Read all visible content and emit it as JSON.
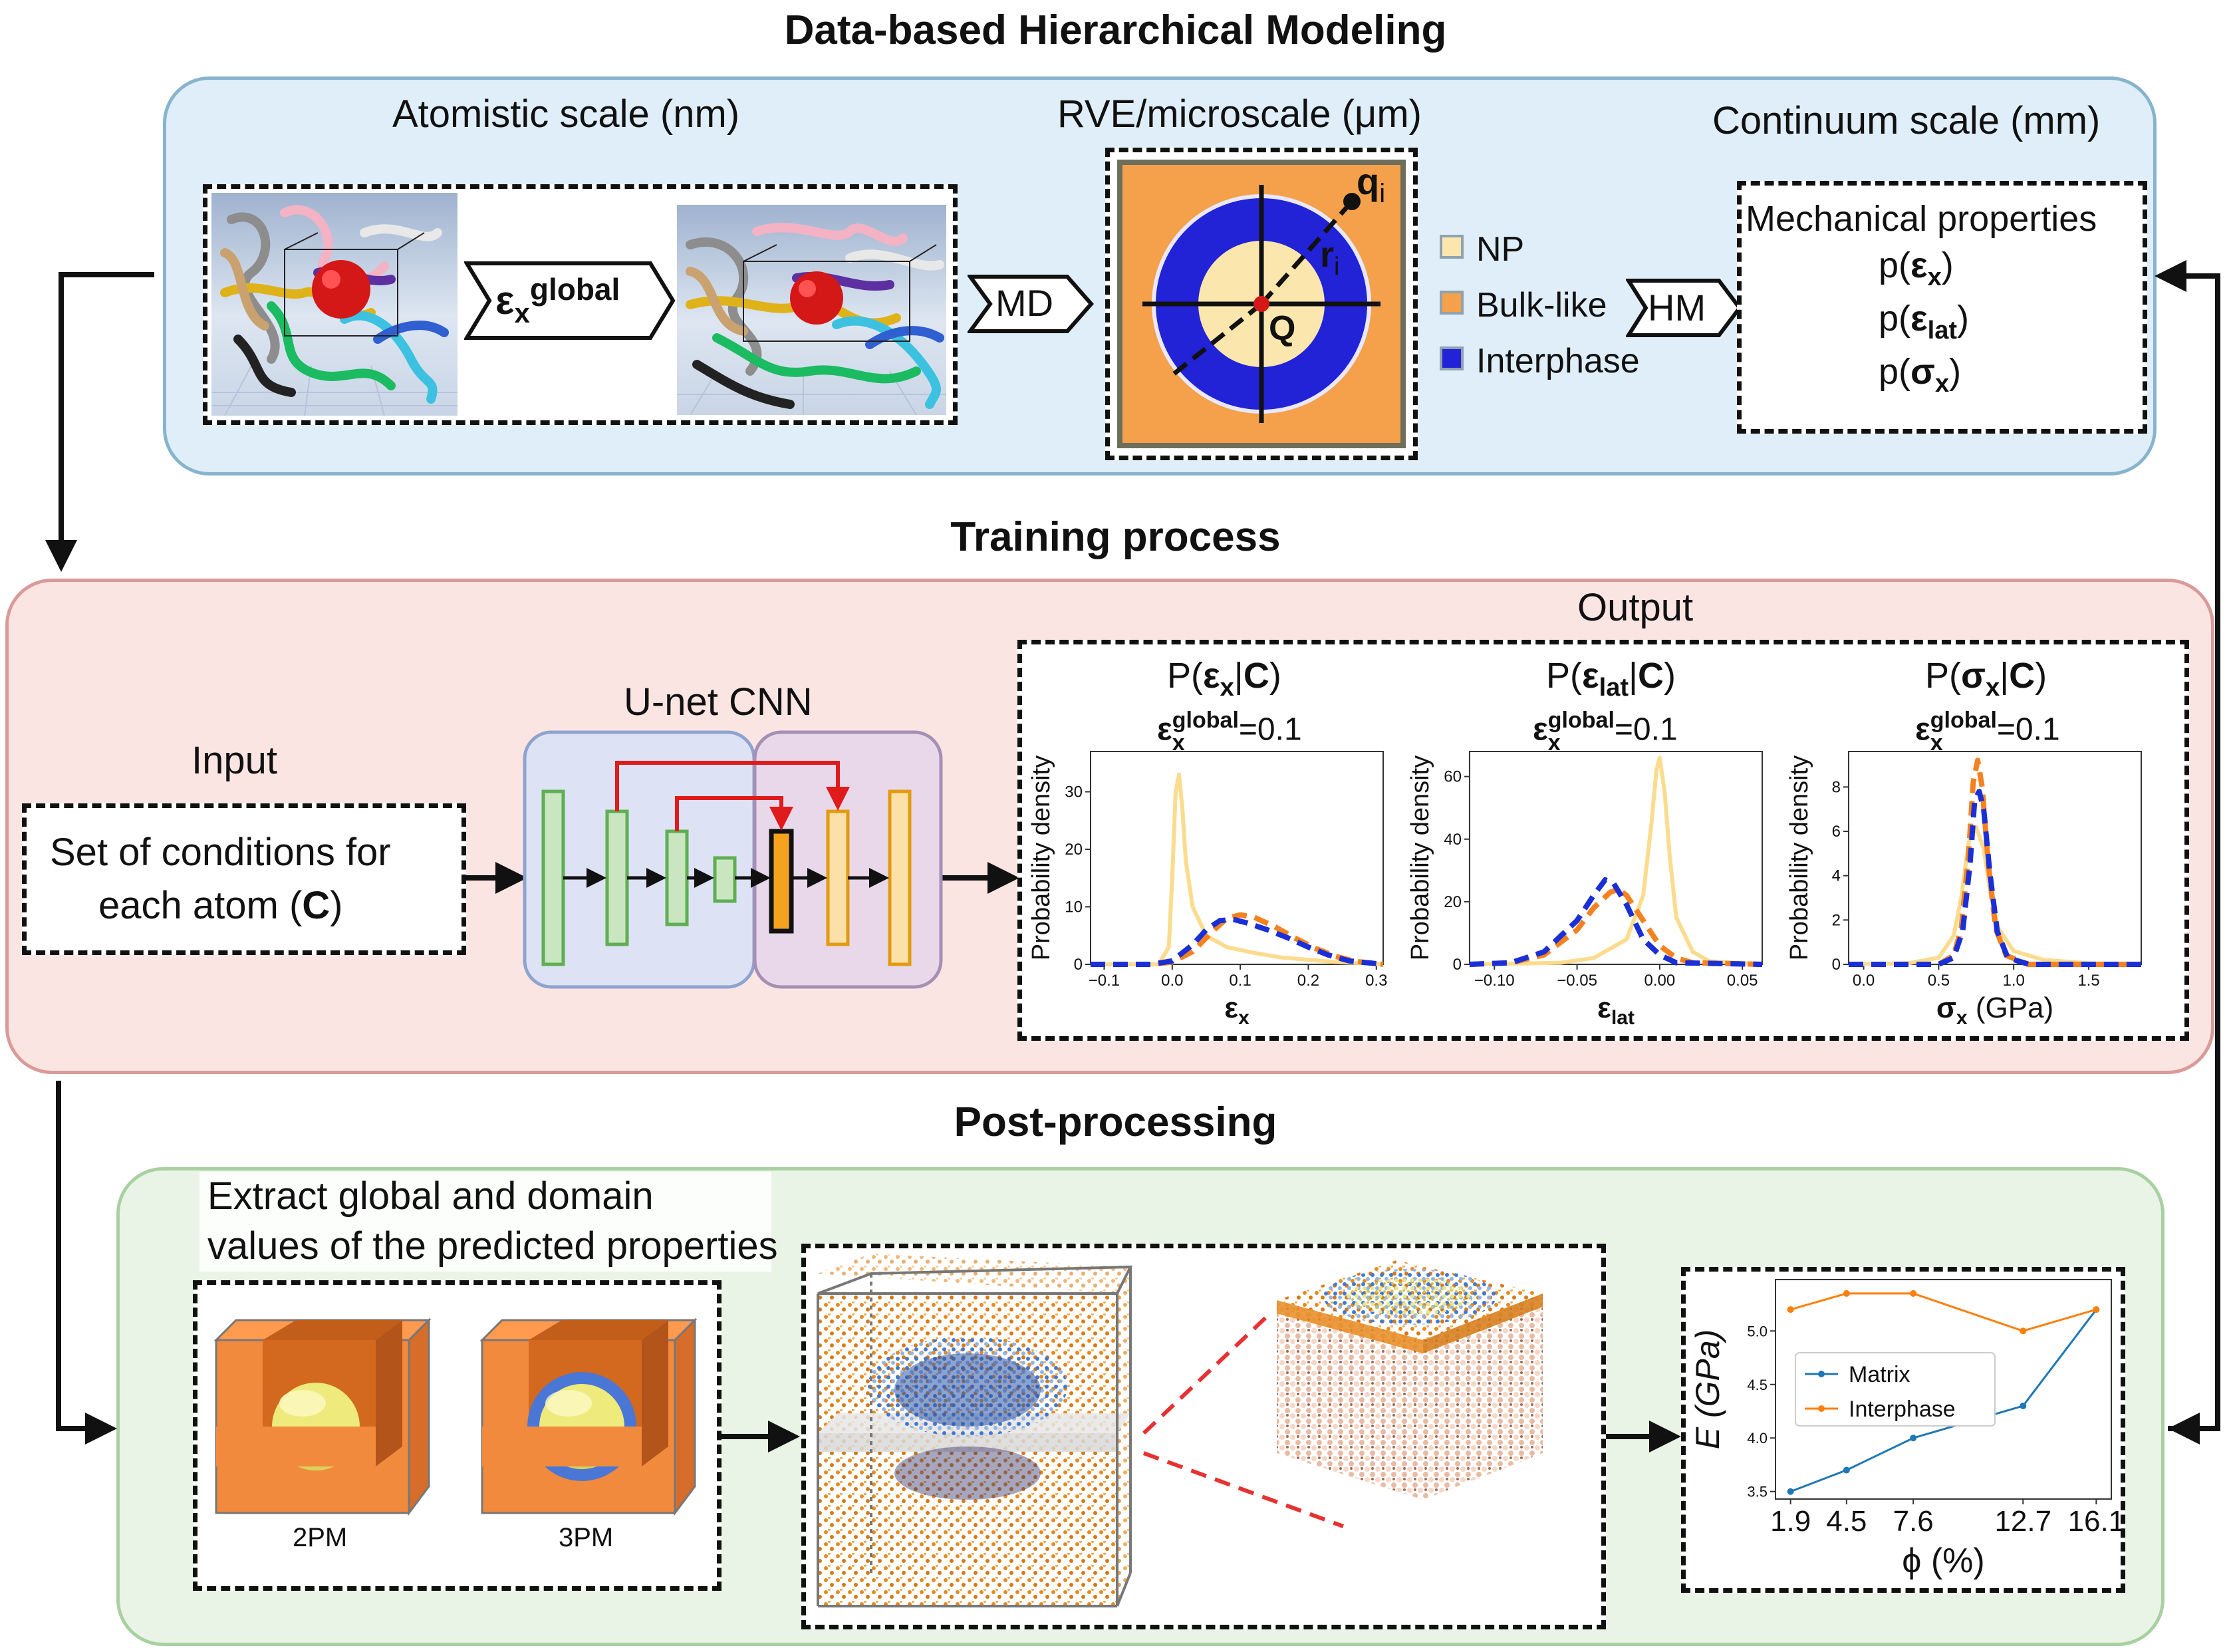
{
  "titles": {
    "main": "Data-based Hierarchical Modeling",
    "training": "Training process",
    "post": "Post-processing"
  },
  "top": {
    "atomistic_label": "Atomistic scale (nm)",
    "rve_label": "RVE/microscale (μm)",
    "continuum_label": "Continuum scale (mm)",
    "strain_arrow": {
      "sym": "ε",
      "sub": "x",
      "sup": "global"
    },
    "md_arrow": "MD",
    "hm_arrow": "HM",
    "rve_labels": {
      "q": "q",
      "q_sub": "i",
      "r": "r",
      "r_sub": "i",
      "center": "Q"
    },
    "legend": [
      {
        "label": "NP",
        "color": "#fbe6ad"
      },
      {
        "label": "Bulk-like",
        "color": "#f5a04a"
      },
      {
        "label": "Interphase",
        "color": "#2222d6"
      }
    ],
    "mech": {
      "title": "Mechanical properties",
      "p": "p(",
      "close": ")",
      "items": [
        {
          "sym": "ε",
          "sub": "x"
        },
        {
          "sym": "ε",
          "sub": "lat"
        },
        {
          "sym": "σ",
          "sub": "x"
        }
      ]
    }
  },
  "training": {
    "input_label": "Input",
    "input_text_1": "Set of conditions for",
    "input_text_2a": "each atom (",
    "input_text_2b": "C",
    "input_text_2c": ")",
    "unet_label": "U-net CNN",
    "output_label": "Output"
  },
  "chart_data": [
    {
      "type": "line",
      "title": {
        "prefix": "P(",
        "sym": "ε",
        "sub": "x",
        "cond": "C",
        "suffix": ")"
      },
      "subtitle": {
        "sym": "ε",
        "sub": "x",
        "sup": "global",
        "value": "=0.1"
      },
      "ylabel": "Probability density",
      "xlabel": {
        "sym": "ε",
        "sub": "x",
        "unit": ""
      },
      "xlim": [
        -0.12,
        0.31
      ],
      "ylim": [
        0,
        37
      ],
      "xticks": [
        -0.1,
        0.0,
        0.1,
        0.2,
        0.3
      ],
      "xtick_labels": [
        "−0.1",
        "0.0",
        "0.1",
        "0.2",
        "0.3"
      ],
      "yticks": [
        0,
        10,
        20,
        30
      ],
      "series": [
        {
          "color": "#fbdc8f",
          "dash": "",
          "x": [
            -0.12,
            -0.02,
            -0.005,
            0.0,
            0.005,
            0.01,
            0.015,
            0.02,
            0.03,
            0.05,
            0.08,
            0.12,
            0.16,
            0.2,
            0.24,
            0.28,
            0.31
          ],
          "y": [
            0,
            0,
            3,
            15,
            30,
            33,
            27,
            18,
            10,
            5,
            3,
            2,
            1.2,
            0.8,
            0.4,
            0.2,
            0
          ]
        },
        {
          "color": "#f58220",
          "dash": "22,12",
          "x": [
            -0.12,
            -0.03,
            0.0,
            0.03,
            0.06,
            0.08,
            0.1,
            0.12,
            0.15,
            0.18,
            0.21,
            0.24,
            0.27,
            0.31
          ],
          "y": [
            0,
            0,
            0.4,
            2.2,
            5.8,
            8,
            8.6,
            8.2,
            6.6,
            4.6,
            2.8,
            1.4,
            0.5,
            0
          ]
        },
        {
          "color": "#1a2fd6",
          "dash": "22,12",
          "x": [
            -0.12,
            -0.03,
            0.0,
            0.03,
            0.05,
            0.07,
            0.09,
            0.11,
            0.14,
            0.17,
            0.2,
            0.23,
            0.26,
            0.31
          ],
          "y": [
            0,
            0,
            0.6,
            3.4,
            6,
            7.6,
            7.8,
            7.2,
            6,
            4.6,
            3,
            1.6,
            0.6,
            0
          ]
        }
      ]
    },
    {
      "type": "line",
      "title": {
        "prefix": "P(",
        "sym": "ε",
        "sub": "lat",
        "cond": "C",
        "suffix": ")"
      },
      "subtitle": {
        "sym": "ε",
        "sub": "x",
        "sup": "global",
        "value": "=0.1"
      },
      "ylabel": "Probability density",
      "xlabel": {
        "sym": "ε",
        "sub": "lat",
        "unit": ""
      },
      "xlim": [
        -0.115,
        0.062
      ],
      "ylim": [
        0,
        68
      ],
      "xticks": [
        -0.1,
        -0.05,
        0.0,
        0.05
      ],
      "xtick_labels": [
        "−0.10",
        "−0.05",
        "0.00",
        "0.05"
      ],
      "yticks": [
        0,
        20,
        40,
        60
      ],
      "series": [
        {
          "color": "#fbdc8f",
          "dash": "",
          "x": [
            -0.115,
            -0.06,
            -0.04,
            -0.02,
            -0.01,
            -0.005,
            -0.002,
            0.0,
            0.003,
            0.006,
            0.01,
            0.02,
            0.03,
            0.062
          ],
          "y": [
            0,
            0.5,
            2,
            8,
            22,
            45,
            62,
            66,
            55,
            35,
            15,
            4,
            1,
            0
          ]
        },
        {
          "color": "#f58220",
          "dash": "22,12",
          "x": [
            -0.115,
            -0.09,
            -0.07,
            -0.05,
            -0.04,
            -0.03,
            -0.025,
            -0.02,
            -0.01,
            0.0,
            0.01,
            0.02,
            0.062
          ],
          "y": [
            0,
            0.5,
            3,
            11,
            18,
            23,
            24,
            22,
            14,
            6,
            2,
            0.5,
            0
          ]
        },
        {
          "color": "#1a2fd6",
          "dash": "22,12",
          "x": [
            -0.115,
            -0.09,
            -0.07,
            -0.05,
            -0.04,
            -0.033,
            -0.028,
            -0.02,
            -0.01,
            0.0,
            0.01,
            0.062
          ],
          "y": [
            0,
            0.5,
            4,
            14,
            22,
            27,
            26,
            19,
            8,
            3,
            0.5,
            0
          ]
        }
      ]
    },
    {
      "type": "line",
      "title": {
        "prefix": "P(",
        "sym": "σ",
        "sub": "x",
        "cond": "C",
        "suffix": ")"
      },
      "subtitle": {
        "sym": "ε",
        "sub": "x",
        "sup": "global",
        "value": "=0.1"
      },
      "ylabel": "Probability density",
      "xlabel": {
        "sym": "σ",
        "sub": "x",
        "unit": " (GPa)"
      },
      "xlim": [
        -0.1,
        1.85
      ],
      "ylim": [
        0,
        9.6
      ],
      "xticks": [
        0.0,
        0.5,
        1.0,
        1.5
      ],
      "xtick_labels": [
        "0.0",
        "0.5",
        "1.0",
        "1.5"
      ],
      "yticks": [
        0,
        2,
        4,
        6,
        8
      ],
      "series": [
        {
          "color": "#fbdc8f",
          "dash": "",
          "x": [
            -0.1,
            0.3,
            0.5,
            0.6,
            0.65,
            0.7,
            0.75,
            0.8,
            0.85,
            0.9,
            1.0,
            1.2,
            1.5,
            1.85
          ],
          "y": [
            0,
            0.05,
            0.3,
            1.3,
            3,
            5.5,
            6.2,
            5.2,
            3,
            1.6,
            0.6,
            0.2,
            0.05,
            0
          ]
        },
        {
          "color": "#f58220",
          "dash": "22,12",
          "x": [
            -0.1,
            0.5,
            0.6,
            0.65,
            0.7,
            0.73,
            0.76,
            0.79,
            0.83,
            0.88,
            0.95,
            1.1,
            1.85
          ],
          "y": [
            0,
            0,
            0.4,
            1.6,
            5,
            8.2,
            9.2,
            8,
            4.6,
            1.6,
            0.4,
            0,
            0
          ]
        },
        {
          "color": "#1a2fd6",
          "dash": "22,12",
          "x": [
            -0.1,
            0.5,
            0.6,
            0.66,
            0.71,
            0.74,
            0.77,
            0.8,
            0.84,
            0.89,
            0.96,
            1.1,
            1.85
          ],
          "y": [
            0,
            0,
            0.3,
            1.5,
            4.6,
            7.4,
            7.8,
            7,
            4.2,
            1.5,
            0.3,
            0,
            0
          ]
        }
      ]
    },
    {
      "type": "line",
      "xlabel": "ϕ (%)",
      "ylabel": "E (GPa)",
      "categories": [
        "1.9",
        "4.5",
        "7.6",
        "12.7",
        "16.1"
      ],
      "x": [
        1.9,
        4.5,
        7.6,
        12.7,
        16.1
      ],
      "xlim": [
        1.2,
        16.8
      ],
      "ylim": [
        3.43,
        5.48
      ],
      "yticks": [
        3.5,
        4.0,
        4.5,
        5.0
      ],
      "ytick_labels": [
        "3.5",
        "4.0",
        "4.5",
        "5.0"
      ],
      "legend": "center-left",
      "series": [
        {
          "name": "Matrix",
          "color": "#1f77b4",
          "values": [
            3.5,
            3.7,
            4.0,
            4.3,
            5.2
          ]
        },
        {
          "name": "Interphase",
          "color": "#ff7f0e",
          "values": [
            5.2,
            5.35,
            5.35,
            5.0,
            5.2
          ]
        }
      ]
    }
  ],
  "post": {
    "extract_line1": "Extract global and domain",
    "extract_line2": "values of the predicted properties",
    "model_2pm": "2PM",
    "model_3pm": "3PM"
  }
}
